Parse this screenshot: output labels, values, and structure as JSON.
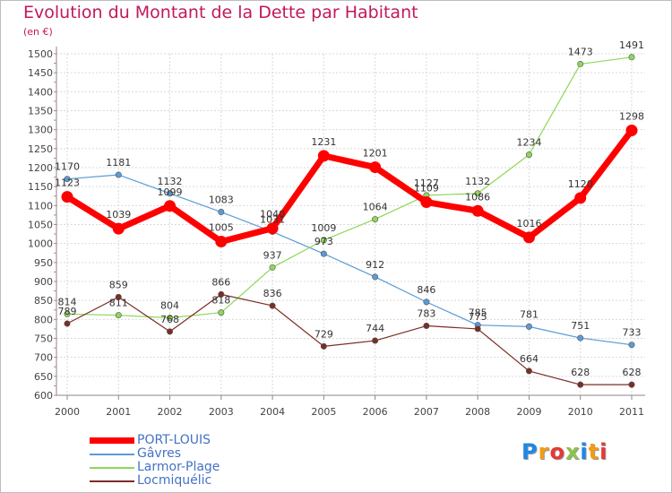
{
  "chart_data": {
    "type": "line",
    "title": "Evolution du Montant de la Dette par Habitant",
    "subtitle": "(en €)",
    "xlabel": "",
    "ylabel": "",
    "x": [
      "2000",
      "2001",
      "2002",
      "2003",
      "2004",
      "2005",
      "2006",
      "2007",
      "2008",
      "2009",
      "2010",
      "2011"
    ],
    "ylim": [
      600,
      1500
    ],
    "yticks": [
      600,
      650,
      700,
      750,
      800,
      850,
      900,
      950,
      1000,
      1050,
      1100,
      1150,
      1200,
      1250,
      1300,
      1350,
      1400,
      1450,
      1500
    ],
    "grid": true,
    "legend_position": "bottom-left",
    "series": [
      {
        "name": "PORT-LOUIS",
        "color": "#ff0000",
        "values": [
          1123,
          1039,
          1099,
          1005,
          1040,
          1231,
          1201,
          1109,
          1086,
          1016,
          1120,
          1298
        ]
      },
      {
        "name": "Gâvres",
        "color": "#5b9bd5",
        "values": [
          1170,
          1181,
          1132,
          1083,
          1031,
          973,
          912,
          846,
          785,
          781,
          751,
          733
        ]
      },
      {
        "name": "Larmor-Plage",
        "color": "#8fd65a",
        "values": [
          814,
          811,
          804,
          818,
          937,
          1009,
          1064,
          1127,
          1132,
          1234,
          1473,
          1491
        ]
      },
      {
        "name": "Locmiquélic",
        "color": "#7b2d26",
        "values": [
          789,
          859,
          768,
          866,
          836,
          729,
          744,
          783,
          775,
          664,
          628,
          628
        ]
      }
    ]
  },
  "logo": {
    "letters": [
      "P",
      "r",
      "o",
      "x",
      "i",
      "t",
      "i"
    ],
    "colors": [
      "#1e88e5",
      "#f39c12",
      "#e53935",
      "#8bc34a",
      "#1e88e5",
      "#f39c12",
      "#e53935"
    ]
  }
}
